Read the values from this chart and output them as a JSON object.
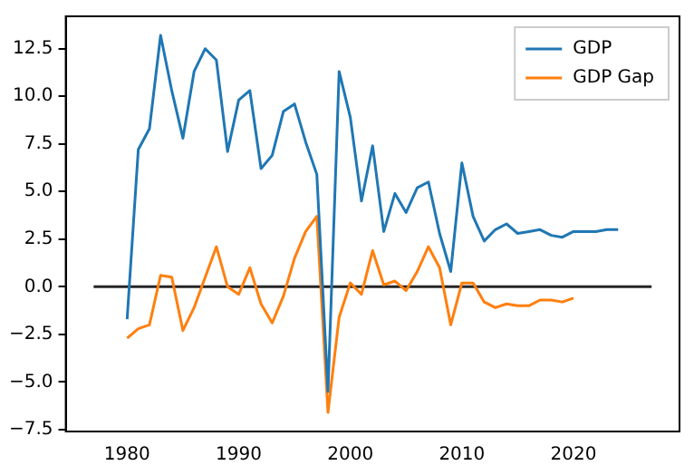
{
  "chart_data": {
    "type": "line",
    "x": [
      1980,
      1981,
      1982,
      1983,
      1984,
      1985,
      1986,
      1987,
      1988,
      1989,
      1990,
      1991,
      1992,
      1993,
      1994,
      1995,
      1996,
      1997,
      1998,
      1999,
      2000,
      2001,
      2002,
      2003,
      2004,
      2005,
      2006,
      2007,
      2008,
      2009,
      2010,
      2011,
      2012,
      2013,
      2014,
      2015,
      2016,
      2017,
      2018,
      2019,
      2020,
      2021,
      2022,
      2023,
      2024
    ],
    "series": [
      {
        "name": "GDP",
        "color": "#1f77b4",
        "values": [
          -1.7,
          7.2,
          8.3,
          13.2,
          10.3,
          7.8,
          11.3,
          12.5,
          11.9,
          7.1,
          9.8,
          10.3,
          6.2,
          6.9,
          9.2,
          9.6,
          7.6,
          5.9,
          -5.5,
          11.3,
          8.9,
          4.5,
          7.4,
          2.9,
          4.9,
          3.9,
          5.2,
          5.5,
          2.8,
          0.8,
          6.5,
          3.7,
          2.4,
          3.0,
          3.3,
          2.8,
          2.9,
          3.0,
          2.7,
          2.6,
          2.9,
          2.9,
          2.9,
          3.0,
          3.0
        ]
      },
      {
        "name": "GDP Gap",
        "color": "#ff7f0e",
        "values": [
          -2.7,
          -2.2,
          -2.0,
          0.6,
          0.5,
          -2.3,
          -1.1,
          0.5,
          2.1,
          0.0,
          -0.4,
          1.0,
          -0.9,
          -1.9,
          -0.5,
          1.5,
          2.9,
          3.7,
          -6.6,
          -1.6,
          0.2,
          -0.4,
          1.9,
          0.1,
          0.3,
          -0.2,
          0.8,
          2.1,
          1.0,
          -2.0,
          0.2,
          0.2,
          -0.8,
          -1.1,
          -0.9,
          -1.0,
          -1.0,
          -0.7,
          -0.7,
          -0.8,
          -0.6,
          null,
          null,
          null,
          null
        ]
      },
      {
        "color": "#262626",
        "x": [
          1977,
          2027
        ],
        "values": [
          0,
          0
        ]
      }
    ],
    "xlim": [
      1974.5,
      2029.5
    ],
    "xticks": [
      1980,
      1990,
      2000,
      2010,
      2020
    ],
    "ylim": [
      -7.6,
      14.2
    ],
    "yticks": [
      {
        "value": -7.5,
        "label": "−7.5"
      },
      {
        "value": -5,
        "label": "−5.0"
      },
      {
        "value": -2.5,
        "label": "−2.5"
      },
      {
        "value": 0,
        "label": "0.0"
      },
      {
        "value": 2.5,
        "label": "2.5"
      },
      {
        "value": 5,
        "label": "5.0"
      },
      {
        "value": 7.5,
        "label": "7.5"
      },
      {
        "value": 10,
        "label": "10.0"
      },
      {
        "value": 12.5,
        "label": "12.5"
      }
    ],
    "grid": false,
    "legend": "top right",
    "marker": "none",
    "line_style": "solid"
  }
}
